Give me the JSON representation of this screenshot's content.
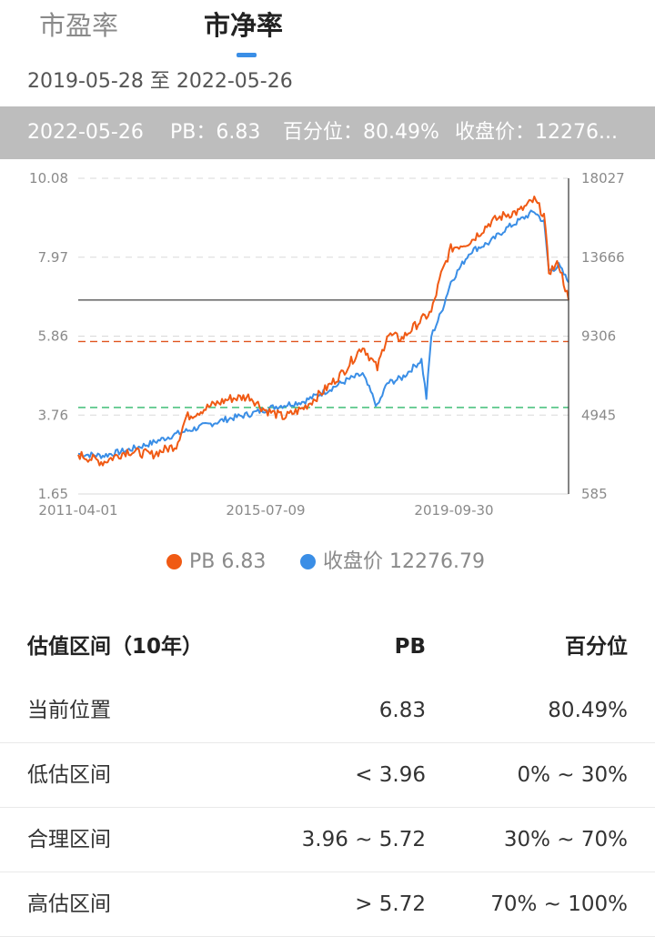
{
  "tabs": [
    {
      "label": "市盈率",
      "active": false
    },
    {
      "label": "市净率",
      "active": true
    }
  ],
  "date_range": "2019-05-28 至 2022-05-26",
  "info_bar": {
    "date": "2022-05-26",
    "pb": "PB：6.83",
    "percentile": "百分位：80.49%",
    "close": "收盘价：12276..."
  },
  "chart_data": {
    "type": "line",
    "y_left_ticks": [
      "10.08",
      "7.97",
      "5.86",
      "3.76",
      "1.65"
    ],
    "y_right_ticks": [
      "18027",
      "13666",
      "9306",
      "4945",
      "585"
    ],
    "x_ticks": [
      "2011-04-01",
      "2015-07-09",
      "2019-09-30"
    ],
    "ylim_left": [
      1.65,
      10.08
    ],
    "ylim_right": [
      585,
      18027
    ],
    "reference_lines": [
      {
        "name": "current",
        "value": 6.83,
        "color": "#555555",
        "style": "solid"
      },
      {
        "name": "high",
        "value": 5.72,
        "color": "#e0531d",
        "style": "dashed"
      },
      {
        "name": "low",
        "value": 3.96,
        "color": "#2eb86a",
        "style": "dashed"
      }
    ],
    "series": [
      {
        "name": "PB",
        "color": "#f05a14",
        "x": [
          0.0,
          0.05,
          0.1,
          0.15,
          0.2,
          0.22,
          0.27,
          0.31,
          0.35,
          0.38,
          0.42,
          0.46,
          0.5,
          0.54,
          0.58,
          0.61,
          0.63,
          0.66,
          0.7,
          0.72,
          0.74,
          0.76,
          0.8,
          0.84,
          0.87,
          0.9,
          0.93,
          0.95,
          0.96,
          0.98,
          1.0
        ],
        "values": [
          2.7,
          2.5,
          2.8,
          2.7,
          2.95,
          3.7,
          4.0,
          4.2,
          4.25,
          3.9,
          3.7,
          3.95,
          4.4,
          4.9,
          5.6,
          5.0,
          5.9,
          5.8,
          6.3,
          6.5,
          7.5,
          8.2,
          8.4,
          8.9,
          9.1,
          9.2,
          9.5,
          9.1,
          7.6,
          7.8,
          6.83
        ]
      },
      {
        "name": "收盘价",
        "color": "#3a8ee6",
        "x": [
          0.0,
          0.05,
          0.1,
          0.15,
          0.2,
          0.25,
          0.3,
          0.35,
          0.4,
          0.46,
          0.5,
          0.55,
          0.58,
          0.61,
          0.63,
          0.66,
          0.7,
          0.71,
          0.72,
          0.74,
          0.76,
          0.8,
          0.84,
          0.87,
          0.9,
          0.93,
          0.95,
          0.96,
          0.98,
          1.0
        ],
        "values": [
          2800,
          2700,
          3000,
          3400,
          3900,
          4300,
          4700,
          5000,
          5400,
          5700,
          6200,
          6900,
          7200,
          5400,
          6700,
          7000,
          8000,
          5900,
          9300,
          10600,
          12300,
          14000,
          14500,
          15200,
          15700,
          16200,
          15600,
          12900,
          13200,
          12276.79
        ]
      }
    ]
  },
  "legend": [
    {
      "label": "PB 6.83",
      "color": "#f05a14"
    },
    {
      "label": "收盘价 12276.79",
      "color": "#3a8ee6"
    }
  ],
  "table": {
    "header": {
      "name": "估值区间（10年）",
      "pb": "PB",
      "pct": "百分位"
    },
    "rows": [
      {
        "name": "当前位置",
        "pb": "6.83",
        "pct": "80.49%"
      },
      {
        "name": "低估区间",
        "pb": "< 3.96",
        "pct": "0% ~ 30%"
      },
      {
        "name": "合理区间",
        "pb": "3.96 ~ 5.72",
        "pct": "30% ~ 70%"
      },
      {
        "name": "高估区间",
        "pb": "> 5.72",
        "pct": "70% ~ 100%"
      }
    ]
  }
}
